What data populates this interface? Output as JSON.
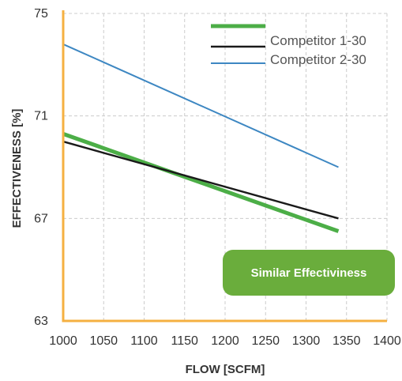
{
  "chart_data": {
    "type": "line",
    "title": "",
    "xlabel": "FLOW [SCFM]",
    "ylabel": "EFFECTIVENESS [%]",
    "xlim": [
      1000,
      1400
    ],
    "ylim": [
      63,
      75
    ],
    "x_ticks": [
      1000,
      1050,
      1100,
      1150,
      1200,
      1250,
      1300,
      1350,
      1400
    ],
    "y_ticks": [
      63,
      67,
      71,
      75
    ],
    "grid": true,
    "legend_position": "top-right",
    "series": [
      {
        "name": "",
        "color": "#4cae47",
        "x": [
          1000,
          1340
        ],
        "values": [
          70.3,
          66.5
        ]
      },
      {
        "name": "Competitor 1-30",
        "color": "#1a1a1a",
        "x": [
          1000,
          1340
        ],
        "values": [
          70.0,
          67.0
        ]
      },
      {
        "name": "Competitor 2-30",
        "color": "#3d87c2",
        "x": [
          1000,
          1340
        ],
        "values": [
          73.8,
          69.0
        ]
      }
    ],
    "annotation": {
      "text": "Similar Effectiviness",
      "color": "#6aad3c"
    },
    "axis_color": "#f5b041",
    "grid_color": "#cccccc"
  }
}
